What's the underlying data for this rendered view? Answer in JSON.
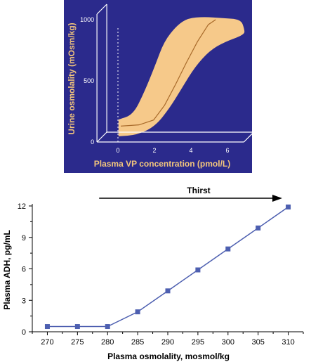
{
  "chart_data": [
    {
      "type": "area",
      "title": "",
      "xlabel": "Plasma VP concentration (pmol/L)",
      "ylabel": "Urine osmolality (mOsm/kg)",
      "xlim": [
        -1,
        7
      ],
      "ylim": [
        0,
        1000
      ],
      "x_ticks": [
        0,
        2,
        4,
        6
      ],
      "y_ticks": [
        0,
        500,
        1000
      ],
      "band_upper": {
        "x": [
          -0.2,
          0.6,
          1.2,
          1.8,
          2.3,
          3.0,
          3.6,
          4.5,
          5.5,
          6.5,
          6.7
        ],
        "y": [
          160,
          200,
          380,
          600,
          800,
          930,
          990,
          1000,
          990,
          980,
          900
        ]
      },
      "band_lower": {
        "x": [
          -0.2,
          0.8,
          1.8,
          2.6,
          3.3,
          4.0,
          4.8,
          5.6,
          6.7
        ],
        "y": [
          70,
          80,
          150,
          300,
          470,
          640,
          770,
          840,
          900
        ]
      },
      "series": [
        {
          "x": [
            0,
            1.0,
            1.8,
            2.4,
            3.0,
            3.6,
            4.2,
            4.8,
            5.2
          ],
          "y": [
            130,
            140,
            180,
            300,
            470,
            650,
            820,
            960,
            1000
          ]
        }
      ],
      "colors": {
        "background": "#2b2a8c",
        "band": "#f6c98a",
        "line": "#a86a2a",
        "axis": "#ffffff",
        "label": "#f2c57c"
      },
      "grid": false
    },
    {
      "type": "line",
      "title": "",
      "xlabel": "Plasma osmolality, mosmol/kg",
      "ylabel": "Plasma ADH, pg/mL",
      "x_ticks": [
        270,
        275,
        280,
        285,
        290,
        295,
        300,
        305,
        310
      ],
      "y_ticks": [
        0,
        3,
        6,
        9,
        12
      ],
      "xlim": [
        267.5,
        312.5
      ],
      "ylim": [
        0,
        12
      ],
      "series": [
        {
          "x": [
            270,
            275,
            280,
            285,
            290,
            295,
            300,
            305,
            310
          ],
          "y": [
            0.5,
            0.5,
            0.5,
            1.9,
            3.9,
            5.9,
            7.9,
            9.9,
            11.9
          ]
        }
      ],
      "annotation": {
        "label": "Thirst",
        "x_start": 280,
        "x_end": 309
      },
      "colors": {
        "line": "#4d5fb0",
        "marker": "#4d5fb0",
        "axis": "#000000"
      },
      "grid": false
    }
  ]
}
